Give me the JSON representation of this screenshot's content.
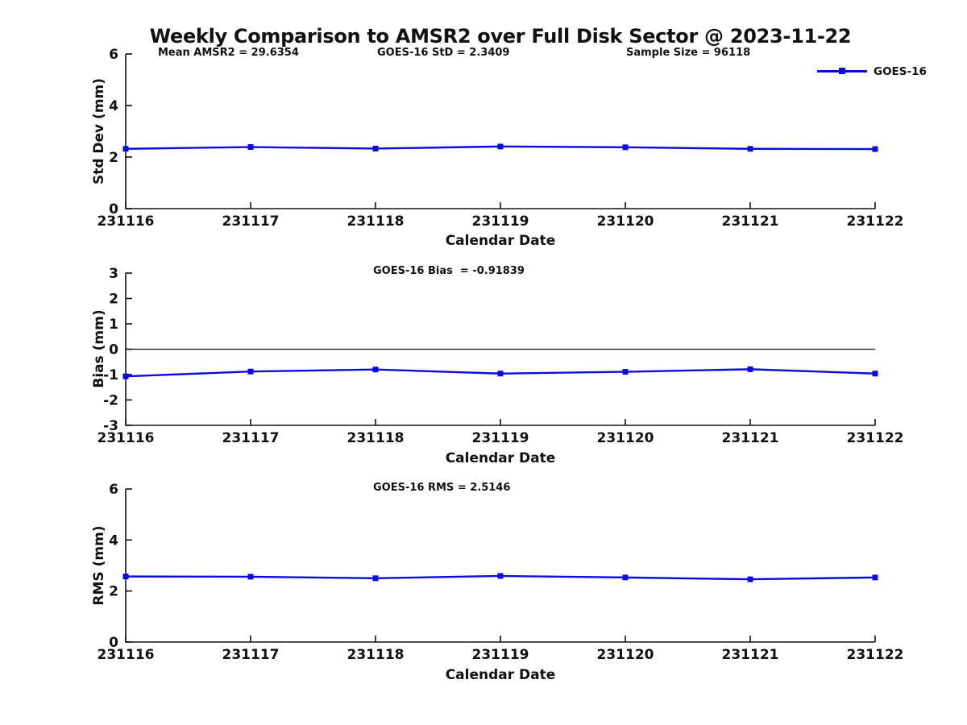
{
  "title": "Weekly Comparison to AMSR2 over Full Disk Sector @ 2023-11-22",
  "legend": {
    "label": "GOES-16",
    "color": "#0b0be0"
  },
  "colors": {
    "line": "#0b0be0",
    "axis": "#111111",
    "text": "#111111",
    "zero_line": "#111111"
  },
  "chart_data": [
    {
      "type": "line",
      "name": "std-dev",
      "series_name": "GOES-16",
      "annotations": [
        "Mean AMSR2 = 29.6354",
        "GOES-16 StD = 2.3409",
        "Sample Size = 96118"
      ],
      "ylabel": "Std Dev (mm)",
      "xlabel": "Calendar Date",
      "categories": [
        "231116",
        "231117",
        "231118",
        "231119",
        "231120",
        "231121",
        "231122"
      ],
      "values": [
        2.32,
        2.39,
        2.33,
        2.41,
        2.38,
        2.32,
        2.31
      ],
      "ylim": [
        0,
        6
      ],
      "yticks": [
        0,
        2,
        4,
        6
      ],
      "zero_line": false,
      "grid": false,
      "legend_position": "upper-right-outside"
    },
    {
      "type": "line",
      "name": "bias",
      "series_name": "GOES-16",
      "annotations": [
        "GOES-16 Bias  = -0.91839"
      ],
      "ylabel": "Bias (mm)",
      "xlabel": "Calendar Date",
      "categories": [
        "231116",
        "231117",
        "231118",
        "231119",
        "231120",
        "231121",
        "231122"
      ],
      "values": [
        -1.07,
        -0.88,
        -0.8,
        -0.96,
        -0.89,
        -0.79,
        -0.96
      ],
      "ylim": [
        -3,
        3
      ],
      "yticks": [
        -3,
        -2,
        -1,
        0,
        1,
        2,
        3
      ],
      "zero_line": true,
      "grid": false
    },
    {
      "type": "line",
      "name": "rms",
      "series_name": "GOES-16",
      "annotations": [
        "GOES-16 RMS = 2.5146"
      ],
      "ylabel": "RMS (mm)",
      "xlabel": "Calendar Date",
      "categories": [
        "231116",
        "231117",
        "231118",
        "231119",
        "231120",
        "231121",
        "231122"
      ],
      "values": [
        2.57,
        2.56,
        2.5,
        2.59,
        2.53,
        2.46,
        2.53
      ],
      "ylim": [
        0,
        6
      ],
      "yticks": [
        0,
        2,
        4,
        6
      ],
      "zero_line": false,
      "grid": false
    }
  ]
}
